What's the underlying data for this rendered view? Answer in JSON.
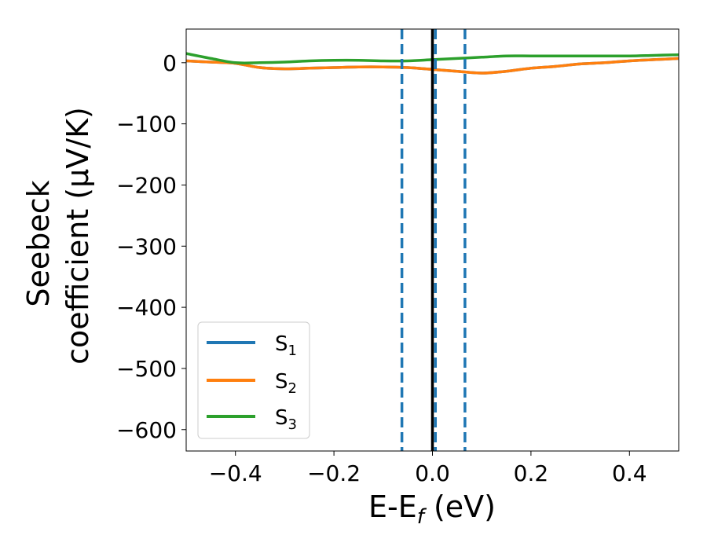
{
  "chart_data": {
    "type": "line",
    "xlabel": "E-E",
    "xlabel_subscript": "f",
    "xlabel_unit": "(eV)",
    "ylabel_line1": "Seebeck",
    "ylabel_line2": "coefficient  (μV/K)",
    "xlim": [
      -0.5,
      0.5
    ],
    "ylim": [
      -635,
      55
    ],
    "x_ticks": [
      -0.4,
      -0.2,
      0.0,
      0.2,
      0.4
    ],
    "x_tick_labels": [
      "−0.4",
      "−0.2",
      "0.0",
      "0.2",
      "0.4"
    ],
    "y_ticks": [
      0,
      -100,
      -200,
      -300,
      -400,
      -500,
      -600
    ],
    "y_tick_labels": [
      "0",
      "−100",
      "−200",
      "−300",
      "−400",
      "−500",
      "−600"
    ],
    "grid": false,
    "legend_position": "lower-left",
    "reference_lines": [
      {
        "x": -0.062,
        "style": "dashed",
        "color": "#1f77b4"
      },
      {
        "x": 0.006,
        "style": "dashed",
        "color": "#1f77b4"
      },
      {
        "x": 0.066,
        "style": "dashed",
        "color": "#1f77b4"
      },
      {
        "x": 0.0,
        "style": "solid",
        "color": "#000000"
      }
    ],
    "x": [
      -0.5,
      -0.45,
      -0.4,
      -0.35,
      -0.3,
      -0.25,
      -0.2,
      -0.15,
      -0.1,
      -0.05,
      0.0,
      0.05,
      0.1,
      0.15,
      0.2,
      0.25,
      0.3,
      0.35,
      0.4,
      0.45,
      0.5
    ],
    "series": [
      {
        "name": "S",
        "subscript": "1",
        "color": "#1f77b4",
        "values": [
          3,
          1,
          -1,
          -8,
          -10,
          -9,
          -8,
          -7,
          -7,
          -8,
          -11,
          -14,
          -17,
          -14,
          -9,
          -6,
          -2,
          0,
          3,
          5,
          7
        ]
      },
      {
        "name": "S",
        "subscript": "2",
        "color": "#ff7f0e",
        "values": [
          3,
          1,
          -1,
          -8,
          -10,
          -9,
          -8,
          -7,
          -7,
          -8,
          -11,
          -14,
          -17,
          -14,
          -9,
          -6,
          -2,
          0,
          3,
          5,
          7
        ]
      },
      {
        "name": "S",
        "subscript": "3",
        "color": "#2ca02c",
        "values": [
          15,
          7,
          0,
          0,
          1,
          3,
          4,
          4,
          3,
          3,
          5,
          7,
          9,
          11,
          11,
          11,
          11,
          11,
          11,
          12,
          13
        ]
      }
    ]
  }
}
